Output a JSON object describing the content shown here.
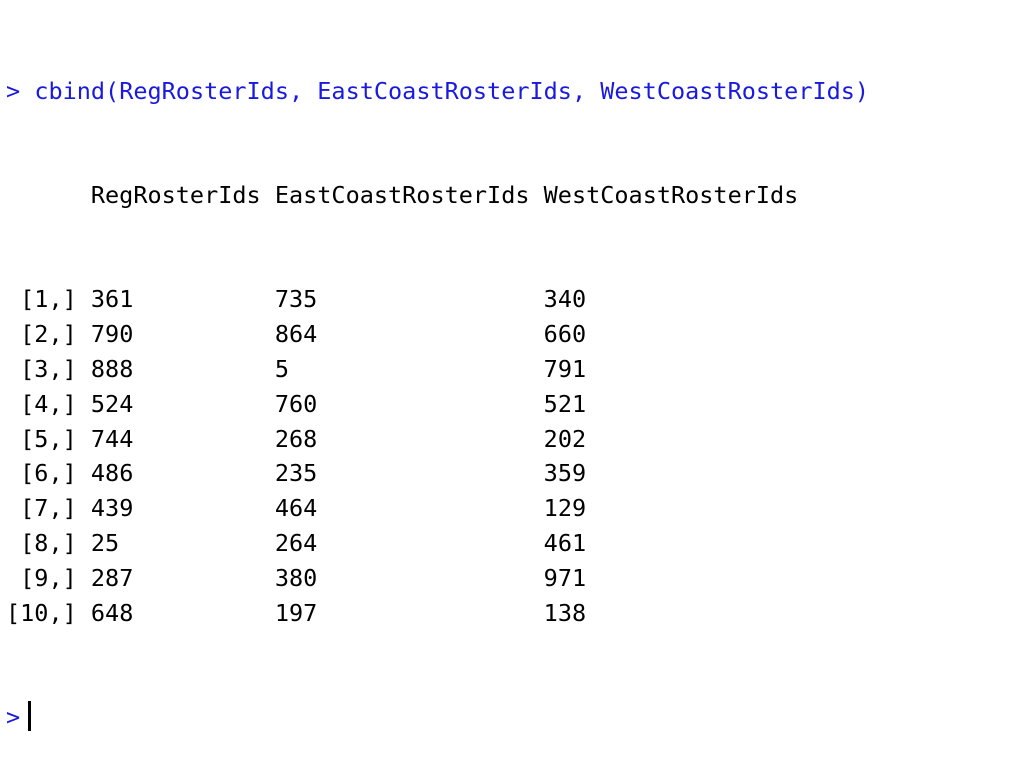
{
  "console": {
    "prompt": ">",
    "command": "cbind(RegRosterIds, EastCoastRosterIds, WestCoastRosterIds)"
  },
  "table": {
    "columns": [
      "RegRosterIds",
      "EastCoastRosterIds",
      "WestCoastRosterIds"
    ],
    "rows": [
      {
        "index": "[1,]",
        "values": [
          "361",
          "735",
          "340"
        ]
      },
      {
        "index": "[2,]",
        "values": [
          "790",
          "864",
          "660"
        ]
      },
      {
        "index": "[3,]",
        "values": [
          "888",
          "5",
          "791"
        ]
      },
      {
        "index": "[4,]",
        "values": [
          "524",
          "760",
          "521"
        ]
      },
      {
        "index": "[5,]",
        "values": [
          "744",
          "268",
          "202"
        ]
      },
      {
        "index": "[6,]",
        "values": [
          "486",
          "235",
          "359"
        ]
      },
      {
        "index": "[7,]",
        "values": [
          "439",
          "464",
          "129"
        ]
      },
      {
        "index": "[8,]",
        "values": [
          "25",
          "264",
          "461"
        ]
      },
      {
        "index": "[9,]",
        "values": [
          "287",
          "380",
          "971"
        ]
      },
      {
        "index": "[10,]",
        "values": [
          "648",
          "197",
          "138"
        ]
      }
    ]
  },
  "colors": {
    "command": "#1a1adf",
    "output": "#000000",
    "background": "#ffffff"
  }
}
